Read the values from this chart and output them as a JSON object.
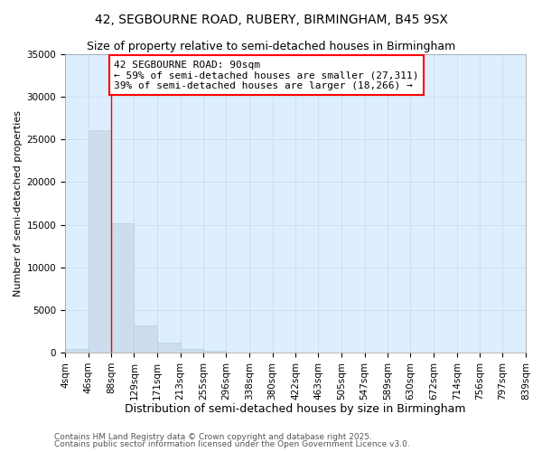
{
  "title1": "42, SEGBOURNE ROAD, RUBERY, BIRMINGHAM, B45 9SX",
  "title2": "Size of property relative to semi-detached houses in Birmingham",
  "xlabel": "Distribution of semi-detached houses by size in Birmingham",
  "ylabel": "Number of semi-detached properties",
  "footer1": "Contains HM Land Registry data © Crown copyright and database right 2025.",
  "footer2": "Contains public sector information licensed under the Open Government Licence v3.0.",
  "annotation_title": "42 SEGBOURNE ROAD: 90sqm",
  "annotation_line2": "← 59% of semi-detached houses are smaller (27,311)",
  "annotation_line3": "39% of semi-detached houses are larger (18,266) →",
  "property_bin_index": 2,
  "bar_color": "#ccdded",
  "bar_edge_color": "#b8cede",
  "vline_color": "red",
  "annotation_box_color": "red",
  "grid_color": "#c8d8e8",
  "background_color": "#ddeeff",
  "bins": [
    4,
    46,
    88,
    129,
    171,
    213,
    255,
    296,
    338,
    380,
    422,
    463,
    505,
    547,
    589,
    630,
    672,
    714,
    756,
    797,
    839
  ],
  "bin_labels": [
    "4sqm",
    "46sqm",
    "88sqm",
    "129sqm",
    "171sqm",
    "213sqm",
    "255sqm",
    "296sqm",
    "338sqm",
    "380sqm",
    "422sqm",
    "463sqm",
    "505sqm",
    "547sqm",
    "589sqm",
    "630sqm",
    "672sqm",
    "714sqm",
    "756sqm",
    "797sqm",
    "839sqm"
  ],
  "values": [
    400,
    26100,
    15200,
    3200,
    1200,
    400,
    200,
    0,
    0,
    0,
    0,
    0,
    0,
    0,
    0,
    0,
    0,
    0,
    0,
    0
  ],
  "ylim": [
    0,
    35000
  ],
  "yticks": [
    0,
    5000,
    10000,
    15000,
    20000,
    25000,
    30000,
    35000
  ],
  "title_fontsize": 10,
  "subtitle_fontsize": 9,
  "xlabel_fontsize": 9,
  "ylabel_fontsize": 8,
  "tick_fontsize": 7.5,
  "annotation_fontsize": 8,
  "footer_fontsize": 6.5
}
